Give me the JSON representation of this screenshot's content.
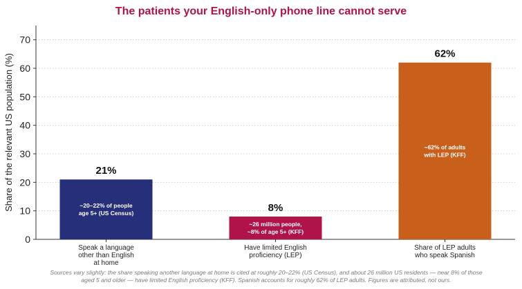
{
  "chart_data": {
    "type": "bar",
    "title": "The patients your English-only phone line cannot serve",
    "xlabel": "",
    "ylabel": "Share of the relevant US population (%)",
    "ylim": [
      0,
      75
    ],
    "yticks": [
      0,
      10,
      20,
      30,
      40,
      50,
      60,
      70
    ],
    "grid": "horizontal dotted",
    "legend": "none",
    "categories": [
      "Speak a language other than English at home",
      "Have limited English proficiency (LEP)",
      "Share of LEP adults who speak Spanish"
    ],
    "category_lines": [
      [
        "Speak a language",
        "other than English",
        "at home"
      ],
      [
        "Have limited English",
        "proficiency (LEP)"
      ],
      [
        "Share of LEP adults",
        "who speak Spanish"
      ]
    ],
    "values": [
      21,
      8,
      62
    ],
    "value_labels": [
      "21%",
      "8%",
      "62%"
    ],
    "bar_annotations": [
      [
        "~20–22% of people",
        "age 5+ (US Census)"
      ],
      [
        "~26 million people,",
        "~8% of age 5+ (KFF)"
      ],
      [
        "~62% of adults",
        "with LEP (KFF)"
      ]
    ],
    "colors": [
      "#262f7a",
      "#b0124a",
      "#c85f1a"
    ],
    "footnote_lines": [
      "Sources vary slightly: the share speaking another language at home is cited at roughly 20–22% (US Census), and about 26 million US residents — near 8% of those",
      "aged 5 and older — have limited English proficiency (KFF). Spanish accounts for roughly 62% of LEP adults. Figures are attributed, not ours."
    ]
  }
}
